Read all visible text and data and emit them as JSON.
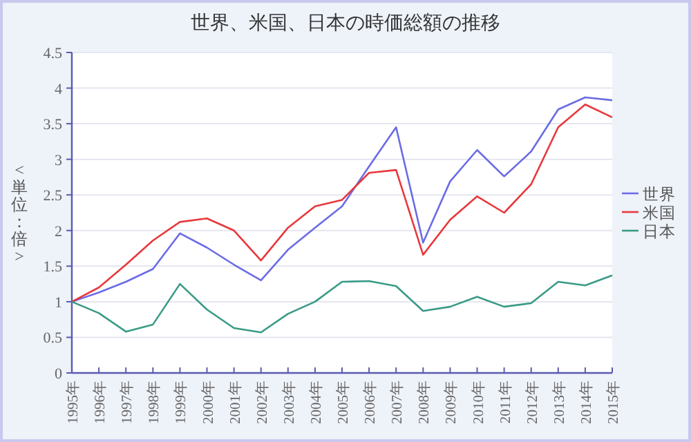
{
  "chart_data": {
    "type": "line",
    "title": "世界、米国、日本の時価総額の推移",
    "ylabel": "<単位：倍>",
    "categories": [
      "1995年",
      "1996年",
      "1997年",
      "1998年",
      "1999年",
      "2000年",
      "2001年",
      "2002年",
      "2003年",
      "2004年",
      "2005年",
      "2006年",
      "2007年",
      "2008年",
      "2009年",
      "2010年",
      "2011年",
      "2012年",
      "2013年",
      "2014年",
      "2015年"
    ],
    "series": [
      {
        "name": "世界",
        "color": "#6b6be6",
        "values": [
          1.0,
          1.13,
          1.28,
          1.46,
          1.96,
          1.76,
          1.52,
          1.3,
          1.73,
          2.04,
          2.34,
          2.9,
          3.45,
          1.83,
          2.69,
          3.13,
          2.76,
          3.11,
          3.7,
          3.87,
          3.83
        ]
      },
      {
        "name": "米国",
        "color": "#e8383c",
        "values": [
          1.0,
          1.2,
          1.52,
          1.86,
          2.12,
          2.17,
          2.0,
          1.58,
          2.04,
          2.34,
          2.43,
          2.81,
          2.85,
          1.66,
          2.15,
          2.48,
          2.25,
          2.65,
          3.45,
          3.77,
          3.59
        ]
      },
      {
        "name": "日本",
        "color": "#3a9a86",
        "values": [
          1.0,
          0.84,
          0.58,
          0.68,
          1.25,
          0.89,
          0.63,
          0.57,
          0.83,
          1.0,
          1.28,
          1.29,
          1.22,
          0.87,
          0.93,
          1.07,
          0.93,
          0.98,
          1.28,
          1.23,
          1.37
        ]
      }
    ],
    "ylim": [
      0,
      4.5
    ],
    "yticks": [
      0,
      {
        "value": 0.5,
        "label": "0.5"
      },
      1,
      {
        "value": 1.5,
        "label": "1.5"
      },
      2,
      {
        "value": 2.5,
        "label": "2.5"
      },
      3,
      {
        "value": 3.5,
        "label": "3.5"
      },
      4,
      {
        "value": 4.5,
        "label": "4.5"
      }
    ],
    "grid": "y",
    "legend": "right"
  }
}
